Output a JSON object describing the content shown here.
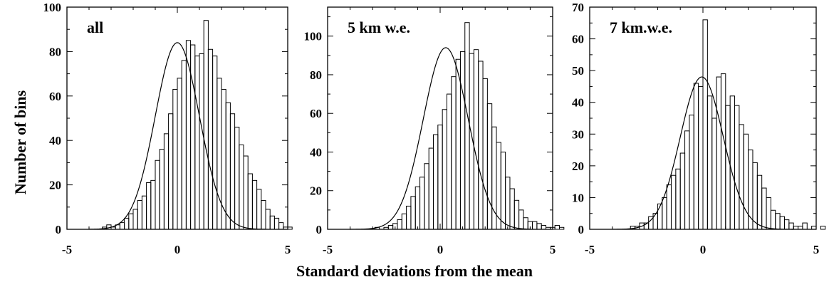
{
  "figure": {
    "ylabel": "Number of bins",
    "xlabel": "Standard deviations from the mean"
  },
  "chart_data": [
    {
      "type": "histogram",
      "title": "",
      "panel_label": "all",
      "xlim": [
        -5,
        5
      ],
      "ylim": [
        0,
        100
      ],
      "x_ticks": [
        -5,
        0,
        5
      ],
      "y_ticks": [
        0,
        20,
        40,
        60,
        80,
        100
      ],
      "bin_width": 0.2,
      "bin_start": -3.4,
      "counts": [
        1,
        2,
        1,
        2,
        3,
        5,
        7,
        9,
        13,
        15,
        21,
        22,
        31,
        36,
        43,
        52,
        63,
        68,
        76,
        85,
        83,
        78,
        79,
        94,
        81,
        78,
        68,
        63,
        57,
        52,
        46,
        38,
        33,
        25,
        22,
        18,
        13,
        9,
        6,
        5,
        3,
        1,
        1,
        0
      ],
      "fit_curve": {
        "type": "gaussian",
        "amplitude": 84,
        "mean": 0.0,
        "sigma": 1.0
      }
    },
    {
      "type": "histogram",
      "title": "",
      "panel_label": "5 km w.e.",
      "xlim": [
        -5,
        5
      ],
      "ylim": [
        0,
        115
      ],
      "x_ticks": [
        -5,
        0,
        5
      ],
      "y_ticks": [
        0,
        20,
        40,
        60,
        80,
        100
      ],
      "bin_width": 0.2,
      "bin_start": -2.9,
      "counts": [
        1,
        0,
        1,
        2,
        3,
        5,
        8,
        12,
        17,
        22,
        27,
        34,
        42,
        49,
        54,
        62,
        70,
        79,
        88,
        92,
        107,
        91,
        93,
        87,
        78,
        65,
        53,
        45,
        40,
        27,
        21,
        15,
        10,
        6,
        4,
        4,
        3,
        2,
        1,
        1,
        2,
        1,
        0
      ],
      "fit_curve": {
        "type": "gaussian",
        "amplitude": 94,
        "mean": 0.25,
        "sigma": 1.0
      }
    },
    {
      "type": "histogram",
      "title": "",
      "panel_label": "7 km.w.e.",
      "xlim": [
        -5,
        5
      ],
      "ylim": [
        0,
        70
      ],
      "x_ticks": [
        -5,
        0,
        5
      ],
      "y_ticks": [
        0,
        10,
        20,
        30,
        40,
        50,
        60,
        70
      ],
      "bin_width": 0.2,
      "bin_start": -3.4,
      "counts": [
        0,
        1,
        1,
        2,
        2,
        4,
        5,
        8,
        10,
        14,
        17,
        19,
        24,
        31,
        36,
        46,
        45,
        66,
        42,
        35,
        48,
        49,
        39,
        42,
        39,
        33,
        30,
        25,
        21,
        17,
        13,
        10,
        6,
        5,
        4,
        3,
        2,
        1,
        1,
        2,
        0,
        1,
        0,
        1,
        0
      ],
      "fit_curve": {
        "type": "gaussian",
        "amplitude": 48,
        "mean": -0.05,
        "sigma": 0.95
      }
    }
  ]
}
